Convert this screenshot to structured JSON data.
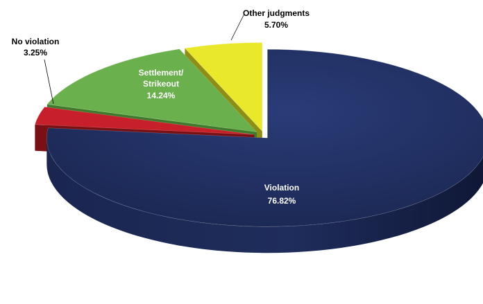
{
  "chart_data": {
    "type": "pie",
    "variant": "3d-exploded",
    "title": "",
    "legend": "none",
    "slices": [
      {
        "name": "Violation",
        "value": 76.82,
        "label_name": "Violation",
        "label_value": "76.82%",
        "color": "#1f2d5c",
        "side_color": "#152046",
        "label_color": "#ffffff"
      },
      {
        "name": "No violation",
        "value": 3.25,
        "label_name": "No violation",
        "label_value": "3.25%",
        "color": "#c8202a",
        "side_color": "#7a0f14",
        "label_color": "#000000"
      },
      {
        "name": "Settlement/Strikeout",
        "value": 14.24,
        "label_name": "Settlement/",
        "label_name2": "Strikeout",
        "label_value": "14.24%",
        "color": "#6ab04c",
        "side_color": "#3f7a2c",
        "label_color": "#ffffff"
      },
      {
        "name": "Other judgments",
        "value": 5.7,
        "label_name": "Other judgments",
        "label_value": "5.70%",
        "color": "#e9e82a",
        "side_color": "#8f8e14",
        "label_color": "#000000"
      }
    ]
  }
}
